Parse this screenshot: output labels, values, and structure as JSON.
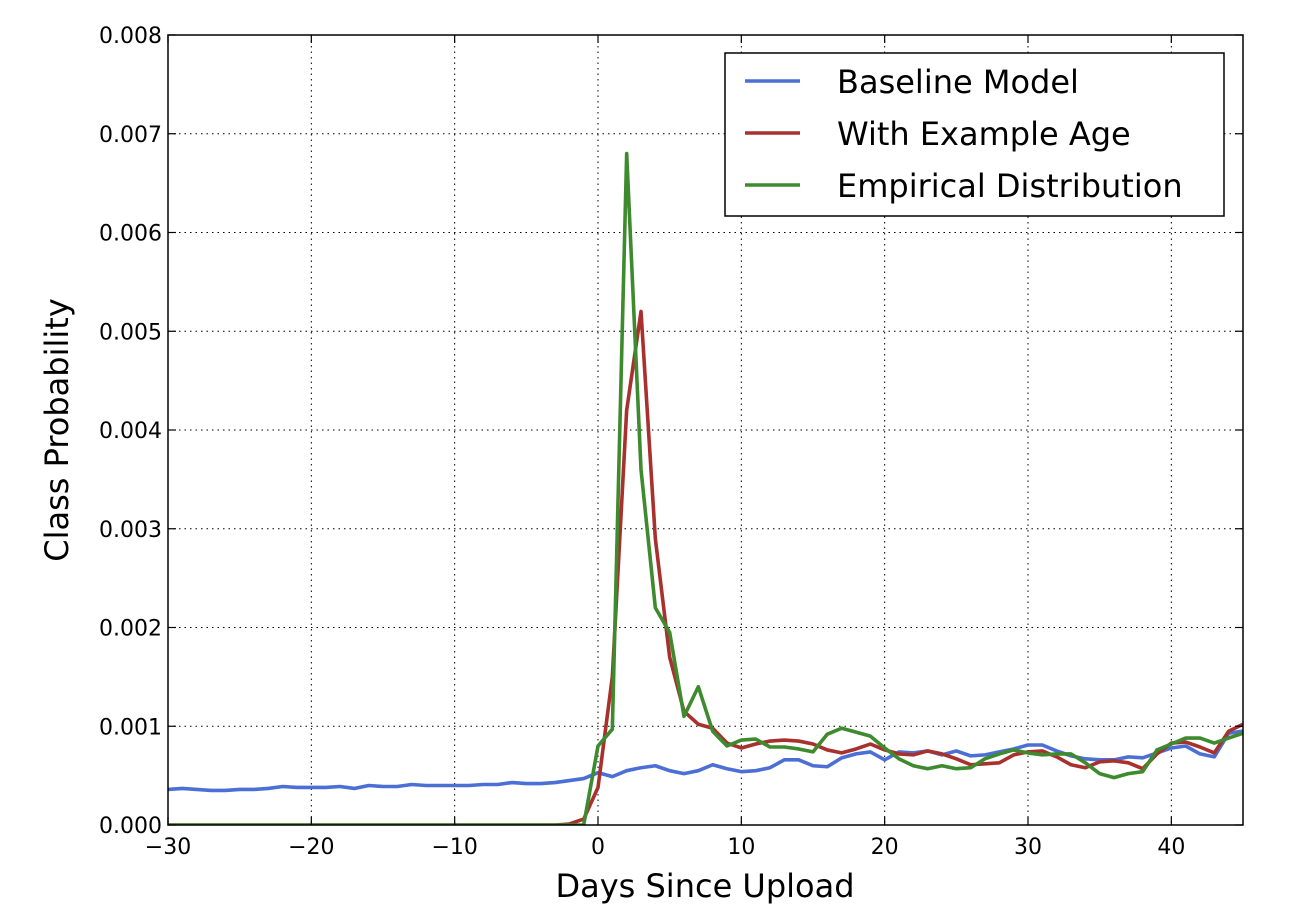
{
  "chart_data": {
    "type": "line",
    "xlabel": "Days Since Upload",
    "ylabel": "Class Probability",
    "xlim": [
      -30,
      45
    ],
    "ylim": [
      0,
      0.008
    ],
    "xticks": [
      -30,
      -20,
      -10,
      0,
      10,
      20,
      30,
      40
    ],
    "xtick_labels": [
      "−30",
      "−20",
      "−10",
      "0",
      "10",
      "20",
      "30",
      "40"
    ],
    "yticks": [
      0,
      0.001,
      0.002,
      0.003,
      0.004,
      0.005,
      0.006,
      0.007,
      0.008
    ],
    "ytick_labels": [
      "0.000",
      "0.001",
      "0.002",
      "0.003",
      "0.004",
      "0.005",
      "0.006",
      "0.007",
      "0.008"
    ],
    "grid": true,
    "legend_position": "top-right",
    "series": [
      {
        "name": "Baseline Model",
        "color": "#4c6fd6",
        "x": [
          -30,
          -29,
          -28,
          -27,
          -26,
          -25,
          -24,
          -23,
          -22,
          -21,
          -20,
          -19,
          -18,
          -17,
          -16,
          -15,
          -14,
          -13,
          -12,
          -11,
          -10,
          -9,
          -8,
          -7,
          -6,
          -5,
          -4,
          -3,
          -2,
          -1,
          0,
          1,
          2,
          3,
          4,
          5,
          6,
          7,
          8,
          9,
          10,
          11,
          12,
          13,
          14,
          15,
          16,
          17,
          18,
          19,
          20,
          21,
          22,
          23,
          24,
          25,
          26,
          27,
          28,
          29,
          30,
          31,
          32,
          33,
          34,
          35,
          36,
          37,
          38,
          39,
          40,
          41,
          42,
          43,
          44,
          45
        ],
        "y": [
          0.00036,
          0.00037,
          0.00036,
          0.00035,
          0.00035,
          0.00036,
          0.00036,
          0.00037,
          0.00039,
          0.00038,
          0.00038,
          0.00038,
          0.00039,
          0.00037,
          0.0004,
          0.00039,
          0.00039,
          0.00041,
          0.0004,
          0.0004,
          0.0004,
          0.0004,
          0.00041,
          0.00041,
          0.00043,
          0.00042,
          0.00042,
          0.00043,
          0.00045,
          0.00047,
          0.00053,
          0.00049,
          0.00055,
          0.00058,
          0.0006,
          0.00055,
          0.00052,
          0.00055,
          0.00061,
          0.00057,
          0.00054,
          0.00055,
          0.00058,
          0.00066,
          0.00066,
          0.0006,
          0.00059,
          0.00068,
          0.00072,
          0.00074,
          0.00066,
          0.00074,
          0.00073,
          0.00075,
          0.00071,
          0.00075,
          0.0007,
          0.00071,
          0.00074,
          0.00077,
          0.00081,
          0.00081,
          0.00075,
          0.0007,
          0.00067,
          0.00066,
          0.00066,
          0.00069,
          0.00068,
          0.00073,
          0.00078,
          0.0008,
          0.00072,
          0.00069,
          0.00093,
          0.00095
        ]
      },
      {
        "name": "With Example Age",
        "color": "#a8312e",
        "x": [
          -30,
          -29,
          -28,
          -27,
          -26,
          -25,
          -24,
          -23,
          -22,
          -21,
          -20,
          -19,
          -18,
          -17,
          -16,
          -15,
          -14,
          -13,
          -12,
          -11,
          -10,
          -9,
          -8,
          -7,
          -6,
          -5,
          -4,
          -3,
          -2,
          -1,
          0,
          1,
          2,
          3,
          4,
          5,
          6,
          7,
          8,
          9,
          10,
          11,
          12,
          13,
          14,
          15,
          16,
          17,
          18,
          19,
          20,
          21,
          22,
          23,
          24,
          25,
          26,
          27,
          28,
          29,
          30,
          31,
          32,
          33,
          34,
          35,
          36,
          37,
          38,
          39,
          40,
          41,
          42,
          43,
          44,
          45
        ],
        "y": [
          0,
          0,
          0,
          0,
          0,
          0,
          0,
          0,
          0,
          0,
          0,
          0,
          0,
          0,
          0,
          0,
          0,
          0,
          0,
          0,
          0,
          0,
          0,
          0,
          0,
          0,
          0,
          0,
          1e-05,
          6e-05,
          0.00038,
          0.0015,
          0.0042,
          0.0052,
          0.0029,
          0.0017,
          0.00115,
          0.00102,
          0.00098,
          0.00083,
          0.00078,
          0.00082,
          0.00085,
          0.00086,
          0.00085,
          0.00082,
          0.00076,
          0.00073,
          0.00077,
          0.00082,
          0.00076,
          0.00072,
          0.00071,
          0.00075,
          0.00072,
          0.00067,
          0.00061,
          0.00062,
          0.00063,
          0.00071,
          0.00074,
          0.00075,
          0.00069,
          0.00061,
          0.00058,
          0.00064,
          0.00065,
          0.00063,
          0.00057,
          0.00072,
          0.00083,
          0.00084,
          0.00079,
          0.00073,
          0.00095,
          0.00102
        ]
      },
      {
        "name": "Empirical Distribution",
        "color": "#3e8a2e",
        "x": [
          -30,
          -29,
          -28,
          -27,
          -26,
          -25,
          -24,
          -23,
          -22,
          -21,
          -20,
          -19,
          -18,
          -17,
          -16,
          -15,
          -14,
          -13,
          -12,
          -11,
          -10,
          -9,
          -8,
          -7,
          -6,
          -5,
          -4,
          -3,
          -2,
          -1,
          0,
          1,
          2,
          3,
          4,
          5,
          6,
          7,
          8,
          9,
          10,
          11,
          12,
          13,
          14,
          15,
          16,
          17,
          18,
          19,
          20,
          21,
          22,
          23,
          24,
          25,
          26,
          27,
          28,
          29,
          30,
          31,
          32,
          33,
          34,
          35,
          36,
          37,
          38,
          39,
          40,
          41,
          42,
          43,
          44,
          45
        ],
        "y": [
          0,
          0,
          0,
          0,
          0,
          0,
          0,
          0,
          0,
          0,
          0,
          0,
          0,
          0,
          0,
          0,
          0,
          0,
          0,
          0,
          0,
          0,
          0,
          0,
          0,
          0,
          0,
          0,
          0,
          0,
          0.0008,
          0.00097,
          0.0068,
          0.0036,
          0.0022,
          0.00195,
          0.0011,
          0.0014,
          0.00095,
          0.0008,
          0.00086,
          0.00087,
          0.00079,
          0.00079,
          0.00077,
          0.00074,
          0.00092,
          0.00098,
          0.00094,
          0.0009,
          0.00078,
          0.00067,
          0.0006,
          0.00057,
          0.0006,
          0.00057,
          0.00058,
          0.00067,
          0.00072,
          0.00076,
          0.00073,
          0.00071,
          0.00072,
          0.00072,
          0.00063,
          0.00052,
          0.00048,
          0.00052,
          0.00054,
          0.00076,
          0.00082,
          0.00088,
          0.00088,
          0.00083,
          0.00088,
          0.00093
        ]
      }
    ]
  }
}
